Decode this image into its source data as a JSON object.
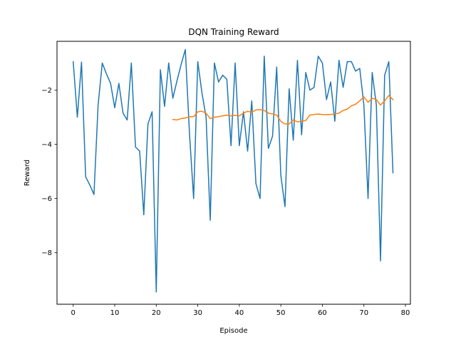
{
  "chart_data": {
    "type": "line",
    "title": "DQN Training Reward",
    "xlabel": "Episode",
    "ylabel": "Reward",
    "xlim": [
      -3.9,
      81.2
    ],
    "ylim": [
      -9.9,
      -0.2
    ],
    "xticks": [
      0,
      10,
      20,
      30,
      40,
      50,
      60,
      70,
      80
    ],
    "xtick_labels": [
      "0",
      "10",
      "20",
      "30",
      "40",
      "50",
      "60",
      "70",
      "80"
    ],
    "yticks": [
      -8,
      -6,
      -4,
      -2
    ],
    "ytick_labels": [
      "−8",
      "−6",
      "−4",
      "−2"
    ],
    "grid": false,
    "colors": {
      "reward": "#1f77b4",
      "moving_average": "#ff7f0e"
    },
    "series": [
      {
        "x": [
          0,
          1,
          2,
          3,
          4,
          5,
          6,
          7,
          8,
          9,
          10,
          11,
          12,
          13,
          14,
          15,
          16,
          17,
          18,
          19,
          20,
          21,
          22,
          23,
          24,
          25,
          26,
          27,
          28,
          29,
          30,
          31,
          32,
          33,
          34,
          35,
          36,
          37,
          38,
          39,
          40,
          41,
          42,
          43,
          44,
          45,
          46,
          47,
          48,
          49,
          50,
          51,
          52,
          53,
          54,
          55,
          56,
          57,
          58,
          59,
          60,
          61,
          62,
          63,
          64,
          65,
          66,
          67,
          68,
          69,
          70,
          71,
          72,
          73,
          74,
          75,
          76,
          77
        ],
        "values": [
          -0.95,
          -3.0,
          -0.97,
          -5.2,
          -5.5,
          -5.85,
          -2.55,
          -1.0,
          -1.4,
          -1.75,
          -2.65,
          -1.75,
          -2.85,
          -3.1,
          -1.0,
          -4.1,
          -4.25,
          -6.6,
          -3.25,
          -2.8,
          -9.45,
          -1.25,
          -2.6,
          -1.0,
          -2.3,
          -1.65,
          -1.05,
          -0.5,
          -3.6,
          -6.0,
          -0.95,
          -2.1,
          -3.0,
          -6.8,
          -1.0,
          -1.7,
          -1.45,
          -1.6,
          -4.05,
          -1.0,
          -4.05,
          -2.8,
          -4.25,
          -2.4,
          -5.45,
          -6.0,
          -0.75,
          -4.15,
          -3.7,
          -1.15,
          -5.15,
          -6.3,
          -1.95,
          -3.85,
          -0.9,
          -3.65,
          -1.35,
          -2.0,
          -1.9,
          -0.75,
          -1.0,
          -2.35,
          -1.7,
          -3.15,
          -0.9,
          -1.9,
          -0.95,
          -0.95,
          -1.3,
          -1.2,
          -2.55,
          -6.0,
          -1.35,
          -2.55,
          -8.3,
          -1.45,
          -0.95,
          -5.05
        ]
      },
      {
        "x": [
          24,
          25,
          26,
          27,
          28,
          29,
          30,
          31,
          32,
          33,
          34,
          35,
          36,
          37,
          38,
          39,
          40,
          41,
          42,
          43,
          44,
          45,
          46,
          47,
          48,
          49,
          50,
          51,
          52,
          53,
          54,
          55,
          56,
          57,
          58,
          59,
          60,
          61,
          62,
          63,
          64,
          65,
          66,
          67,
          68,
          69,
          70,
          71,
          72,
          73,
          74,
          75,
          76,
          77
        ],
        "values": [
          -3.08,
          -3.1,
          -3.05,
          -3.03,
          -2.98,
          -2.98,
          -2.8,
          -2.78,
          -2.85,
          -3.05,
          -3.0,
          -2.98,
          -2.95,
          -2.92,
          -2.95,
          -2.93,
          -2.95,
          -2.85,
          -2.78,
          -2.82,
          -2.73,
          -2.72,
          -2.75,
          -2.85,
          -2.88,
          -2.92,
          -3.15,
          -3.25,
          -3.25,
          -3.1,
          -3.17,
          -3.15,
          -3.12,
          -2.92,
          -2.9,
          -2.88,
          -2.9,
          -2.9,
          -2.9,
          -2.88,
          -2.85,
          -2.75,
          -2.7,
          -2.58,
          -2.52,
          -2.4,
          -2.25,
          -2.45,
          -2.3,
          -2.35,
          -2.55,
          -2.4,
          -2.2,
          -2.35
        ]
      }
    ]
  }
}
